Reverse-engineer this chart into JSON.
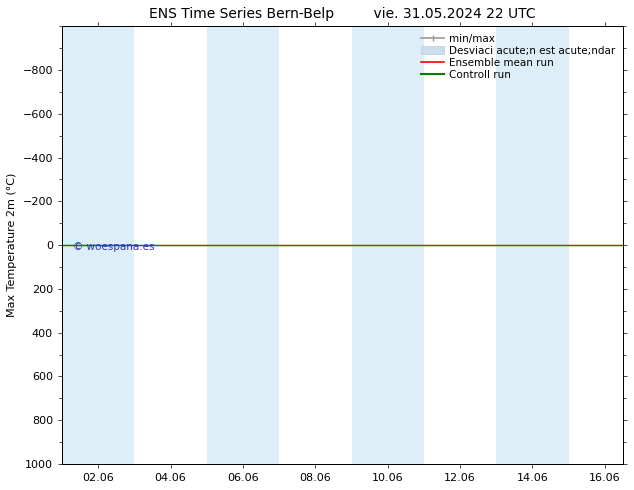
{
  "title_left": "ENS Time Series Bern-Belp",
  "title_right": "vie. 31.05.2024 22 UTC",
  "ylabel": "Max Temperature 2m (°C)",
  "bg_color": "#ffffff",
  "plot_bg_color": "#ffffff",
  "band_color": "#ddeef8",
  "xlim_start": 0,
  "xlim_end": 15.5,
  "ylim_bottom": 1000,
  "ylim_top": -1000,
  "yticks": [
    -800,
    -600,
    -400,
    -200,
    0,
    200,
    400,
    600,
    800,
    1000
  ],
  "xtick_labels": [
    "02.06",
    "04.06",
    "06.06",
    "08.06",
    "10.06",
    "12.06",
    "14.06",
    "16.06"
  ],
  "xtick_positions": [
    1,
    3,
    5,
    7,
    9,
    11,
    13,
    15
  ],
  "vertical_bands": [
    [
      0,
      2
    ],
    [
      4,
      6
    ],
    [
      8,
      10
    ],
    [
      12,
      14
    ]
  ],
  "hline_y": 0,
  "hline_color_ensemble": "#ff0000",
  "hline_color_control": "#008000",
  "watermark": "© woespana.es",
  "watermark_color": "#3333bb",
  "legend_label_minmax": "min/max",
  "legend_label_std": "Desviaci acute;n est acute;ndar",
  "legend_label_ens": "Ensemble mean run",
  "legend_label_ctrl": "Controll run",
  "title_fontsize": 10,
  "axis_fontsize": 8,
  "tick_fontsize": 8,
  "legend_fontsize": 7.5
}
